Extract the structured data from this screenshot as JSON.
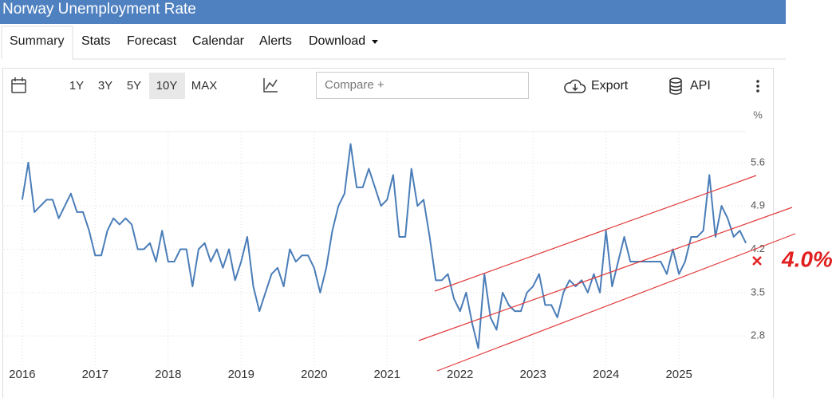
{
  "header": {
    "title": "Norway Unemployment Rate"
  },
  "tabs": [
    "Summary",
    "Stats",
    "Forecast",
    "Calendar",
    "Alerts",
    "Download"
  ],
  "toolbar": {
    "ranges": [
      "1Y",
      "3Y",
      "5Y",
      "10Y",
      "MAX"
    ],
    "compare": "Compare +",
    "export": "Export",
    "api": "API"
  },
  "chart_data": {
    "type": "line",
    "y_label": "%",
    "color": "#4a7db8",
    "grid": true,
    "x": [
      "2016-01",
      "2016-02",
      "2016-03",
      "2016-04",
      "2016-05",
      "2016-06",
      "2016-07",
      "2016-08",
      "2016-09",
      "2016-10",
      "2016-11",
      "2016-12",
      "2017-01",
      "2017-02",
      "2017-03",
      "2017-04",
      "2017-05",
      "2017-06",
      "2017-07",
      "2017-08",
      "2017-09",
      "2017-10",
      "2017-11",
      "2017-12",
      "2018-01",
      "2018-02",
      "2018-03",
      "2018-04",
      "2018-05",
      "2018-06",
      "2018-07",
      "2018-08",
      "2018-09",
      "2018-10",
      "2018-11",
      "2018-12",
      "2019-01",
      "2019-02",
      "2019-03",
      "2019-04",
      "2019-05",
      "2019-06",
      "2019-07",
      "2019-08",
      "2019-09",
      "2019-10",
      "2019-11",
      "2019-12",
      "2020-01",
      "2020-02",
      "2020-03",
      "2020-04",
      "2020-05",
      "2020-06",
      "2020-07",
      "2020-08",
      "2020-09",
      "2020-10",
      "2020-11",
      "2020-12",
      "2021-01",
      "2021-02",
      "2021-03",
      "2021-04",
      "2021-05",
      "2021-06",
      "2021-07",
      "2021-08",
      "2021-09",
      "2021-10",
      "2021-11",
      "2021-12",
      "2022-01",
      "2022-02",
      "2022-03",
      "2022-04",
      "2022-05",
      "2022-06",
      "2022-07",
      "2022-08",
      "2022-09",
      "2022-10",
      "2022-11",
      "2022-12",
      "2023-01",
      "2023-02",
      "2023-03",
      "2023-04",
      "2023-05",
      "2023-06",
      "2023-07",
      "2023-08",
      "2023-09",
      "2023-10",
      "2023-11",
      "2023-12",
      "2024-01",
      "2024-02",
      "2024-03",
      "2024-04",
      "2024-05",
      "2024-06",
      "2024-07",
      "2024-08",
      "2024-09",
      "2024-10",
      "2024-11",
      "2024-12",
      "2025-01",
      "2025-02",
      "2025-03",
      "2025-04",
      "2025-05",
      "2025-06",
      "2025-07",
      "2025-08",
      "2025-09",
      "2025-10",
      "2025-11",
      "2025-12"
    ],
    "values": [
      5.0,
      5.6,
      4.8,
      4.9,
      5.0,
      5.0,
      4.7,
      4.9,
      5.1,
      4.8,
      4.8,
      4.5,
      4.1,
      4.1,
      4.5,
      4.7,
      4.6,
      4.7,
      4.6,
      4.2,
      4.2,
      4.3,
      4.0,
      4.5,
      4.0,
      4.0,
      4.2,
      4.2,
      3.6,
      4.2,
      4.3,
      4.0,
      4.2,
      3.9,
      4.2,
      3.7,
      4.0,
      4.4,
      3.6,
      3.2,
      3.5,
      3.8,
      3.9,
      3.6,
      4.2,
      4.0,
      4.1,
      4.1,
      3.9,
      3.5,
      3.9,
      4.5,
      4.9,
      5.1,
      5.9,
      5.2,
      5.2,
      5.5,
      5.2,
      4.9,
      5.0,
      5.4,
      4.4,
      4.4,
      5.5,
      4.9,
      5.0,
      4.4,
      3.7,
      3.7,
      3.8,
      3.4,
      3.2,
      3.5,
      3.0,
      2.6,
      3.8,
      3.1,
      2.9,
      3.5,
      3.3,
      3.2,
      3.2,
      3.5,
      3.6,
      3.8,
      3.3,
      3.3,
      3.1,
      3.5,
      3.7,
      3.6,
      3.7,
      3.5,
      3.8,
      3.5,
      4.5,
      3.6,
      4.0,
      4.4,
      4.0,
      4.0,
      4.0,
      4.0,
      4.0,
      4.0,
      3.8,
      4.2,
      3.8,
      4.0,
      4.4,
      4.4,
      4.5,
      5.4,
      4.4,
      4.9,
      4.7,
      4.4,
      4.5,
      4.3
    ],
    "xlim": [
      "2015-10",
      "2025-12"
    ],
    "xticks": [
      2016,
      2017,
      2018,
      2019,
      2020,
      2021,
      2022,
      2023,
      2024,
      2025
    ],
    "ylim": [
      2.3,
      6.1
    ],
    "yticks": [
      2.8,
      3.5,
      4.2,
      4.9,
      5.6
    ],
    "annotation": "4.0%"
  }
}
